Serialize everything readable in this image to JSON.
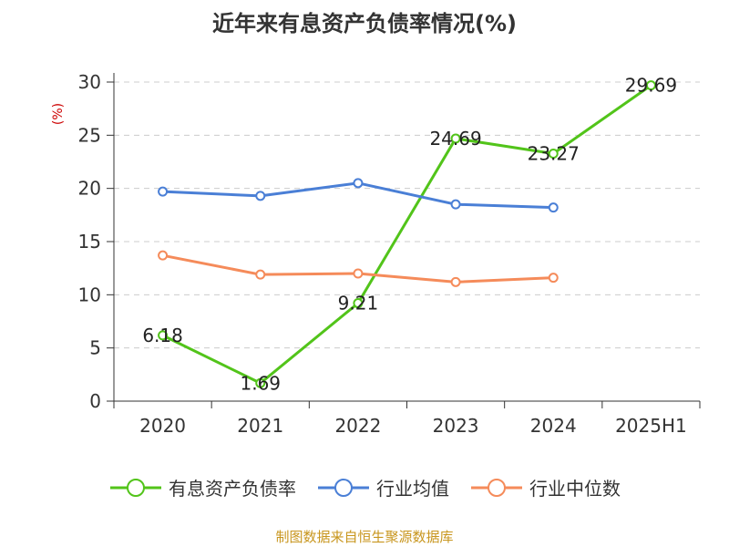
{
  "page": {
    "title": "近年来有息资产负债率情况(%)",
    "source": "制图数据来自恒生聚源数据库"
  },
  "chart_data": {
    "type": "line",
    "title": "近年来有息资产负债率情况(%)",
    "ylabel": "(%)",
    "categories": [
      "2020",
      "2021",
      "2022",
      "2023",
      "2024",
      "2025H1"
    ],
    "ylim": [
      0,
      30
    ],
    "yticks": [
      0,
      5,
      10,
      15,
      20,
      25,
      30
    ],
    "grid": true,
    "legend_position": "bottom",
    "series": [
      {
        "name": "有息资产负债率",
        "color": "#52c41a",
        "show_labels": true,
        "values": [
          6.18,
          1.69,
          9.21,
          24.69,
          23.27,
          29.69
        ]
      },
      {
        "name": "行业均值",
        "color": "#4a7fd6",
        "show_labels": false,
        "values": [
          19.7,
          19.3,
          20.5,
          18.5,
          18.2,
          null
        ]
      },
      {
        "name": "行业中位数",
        "color": "#f58b5a",
        "show_labels": false,
        "values": [
          13.7,
          11.9,
          12.0,
          11.2,
          11.6,
          null
        ]
      }
    ]
  }
}
